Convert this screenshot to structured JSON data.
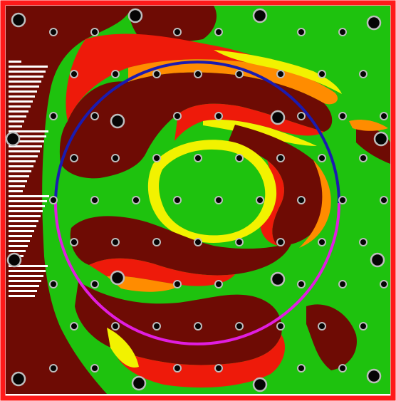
{
  "colors": {
    "frame": "#ff1a1a",
    "background": "#ffffff",
    "maroon": "#6e0b04",
    "green": "#1ec20e",
    "red": "#ee1a0a",
    "orange": "#ff8c00",
    "yellow": "#f2f200",
    "white": "#ffffff",
    "circle_upper": "#1b1bb0",
    "circle_lower": "#e01ee0",
    "marker_fill": "#050505",
    "marker_ring": "#bdbdbd"
  },
  "overlay": {
    "ring_segments": [
      "upper-arc",
      "lower-arc"
    ]
  }
}
